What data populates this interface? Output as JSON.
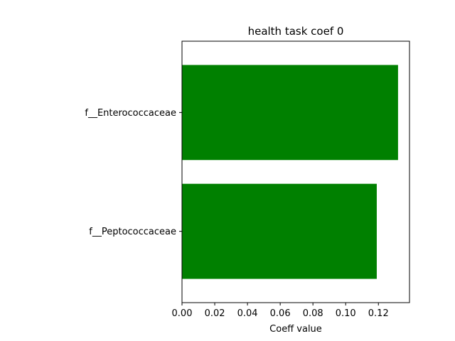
{
  "chart_data": {
    "type": "bar",
    "orientation": "horizontal",
    "title": "health task coef 0",
    "xlabel": "Coeff value",
    "ylabel": "",
    "categories": [
      "f__Peptococcaceae",
      "f__Enterococcaceae"
    ],
    "values": [
      0.119,
      0.132
    ],
    "xlim": [
      0,
      0.139
    ],
    "xticks": [
      0.0,
      0.02,
      0.04,
      0.06,
      0.08,
      0.1,
      0.12
    ],
    "xtick_labels": [
      "0.00",
      "0.02",
      "0.04",
      "0.06",
      "0.08",
      "0.10",
      "0.12"
    ],
    "grid": false,
    "legend": "none",
    "bar_color": "#008000"
  }
}
